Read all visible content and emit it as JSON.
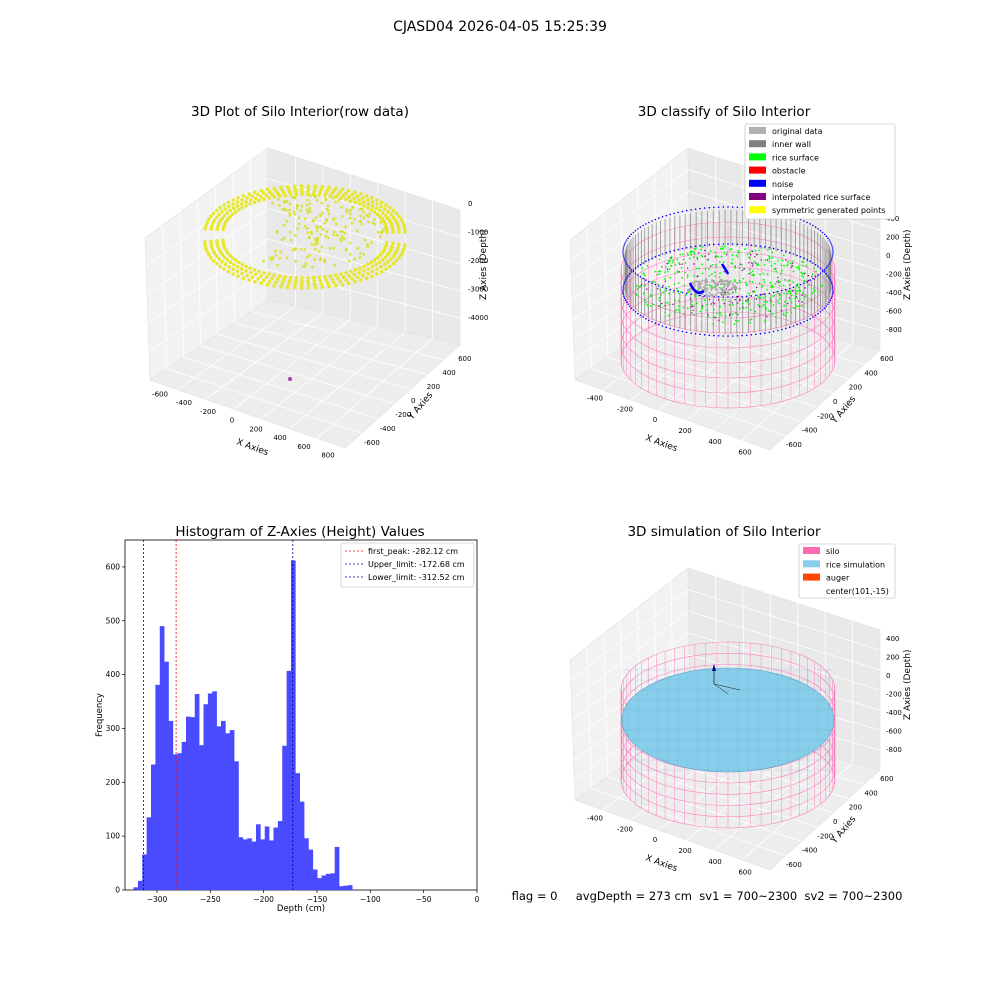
{
  "figure_title": "CJASD04 2026-04-05 15:25:39",
  "colors": {
    "grey_pane": "#f2f2f2",
    "grid": "#d9d9d9",
    "yellow_points": "#e5e51a",
    "green": "#00ff00",
    "blue": "#0000ff",
    "pink": "#ff69b4",
    "rice": "#87ceeb",
    "hist_bar": "#4a4aff",
    "red_line": "#ff0000",
    "blue_line": "#0000aa"
  },
  "chart_data": [
    {
      "type": "scatter3d",
      "title": "3D Plot of Silo Interior(row data)",
      "xlabel": "X Axies",
      "ylabel": "Y Axies",
      "zlabel": "Z Axies (Depth)",
      "x_ticks": [
        "-600",
        "-400",
        "-200",
        "0",
        "200",
        "400",
        "600",
        "800"
      ],
      "y_ticks": [
        "-600",
        "-400",
        "-200",
        "0",
        "200",
        "400",
        "600"
      ],
      "z_ticks": [
        "-4000",
        "-3000",
        "-2000",
        "-1000",
        "0"
      ]
    },
    {
      "type": "scatter3d",
      "title": "3D classify of Silo Interior",
      "xlabel": "X Axies",
      "ylabel": "Y Axies",
      "zlabel": "Z Axies (Depth)",
      "x_ticks": [
        "-400",
        "-200",
        "0",
        "200",
        "400",
        "600"
      ],
      "y_ticks": [
        "-600",
        "-400",
        "-200",
        "0",
        "200",
        "400",
        "600"
      ],
      "z_ticks": [
        "-800",
        "-600",
        "-400",
        "-200",
        "0",
        "200",
        "400"
      ],
      "legend": [
        {
          "label": "original data",
          "color": "#b0b0b0"
        },
        {
          "label": "inner wall",
          "color": "#808080"
        },
        {
          "label": "rice surface",
          "color": "#00ff00"
        },
        {
          "label": "obstacle",
          "color": "#ff0000"
        },
        {
          "label": "noise",
          "color": "#0000ff"
        },
        {
          "label": "interpolated rice surface",
          "color": "#800080"
        },
        {
          "label": "symmetric generated points",
          "color": "#ffff00"
        }
      ]
    },
    {
      "type": "bar",
      "title": "Histogram of Z-Axies (Height) Values",
      "xlabel": "Depth (cm)",
      "ylabel": "Frequency",
      "xlim": [
        -330,
        0
      ],
      "ylim": [
        0,
        650
      ],
      "x_ticks": [
        -300,
        -250,
        -200,
        -150,
        -100,
        -50,
        0
      ],
      "y_ticks": [
        0,
        100,
        200,
        300,
        400,
        500,
        600
      ],
      "bin_start": -322,
      "bin_width": 4.1,
      "values": [
        5,
        17,
        66,
        135,
        233,
        381,
        490,
        424,
        314,
        252,
        254,
        275,
        322,
        321,
        364,
        269,
        345,
        365,
        369,
        304,
        314,
        291,
        297,
        239,
        98,
        94,
        96,
        90,
        122,
        94,
        118,
        92,
        116,
        128,
        268,
        407,
        612,
        217,
        164,
        96,
        75,
        38,
        22,
        27,
        30,
        31,
        80,
        7,
        8,
        9
      ],
      "vlines": [
        {
          "label": "first_peak: -282.12 cm",
          "x": -282.12,
          "color": "#ff0000"
        },
        {
          "label": "Upper_limit: -172.68 cm",
          "x": -172.68,
          "color": "#0000aa"
        },
        {
          "label": "Lower_limit: -312.52 cm",
          "x": -312.52,
          "color": "#0000aa"
        }
      ]
    },
    {
      "type": "surface3d",
      "title": "3D simulation of Silo Interior",
      "xlabel": "X Axies",
      "ylabel": "Y Axies",
      "zlabel": "Z Axies (Depth)",
      "x_ticks": [
        "-400",
        "-200",
        "0",
        "200",
        "400",
        "600"
      ],
      "y_ticks": [
        "-600",
        "-400",
        "-200",
        "0",
        "200",
        "400",
        "600"
      ],
      "z_ticks": [
        "-800",
        "-600",
        "-400",
        "-200",
        "0",
        "200",
        "400"
      ],
      "legend": [
        {
          "label": "silo",
          "color": "#ff69b4"
        },
        {
          "label": "rice simulation",
          "color": "#87ceeb"
        },
        {
          "label": "auger",
          "color": "#ff4500"
        },
        {
          "label": "center(101,-15)",
          "color": ""
        }
      ]
    }
  ],
  "status_line": "flag = 0     avgDepth = 273 cm  sv1 = 700~2300  sv2 = 700~2300"
}
